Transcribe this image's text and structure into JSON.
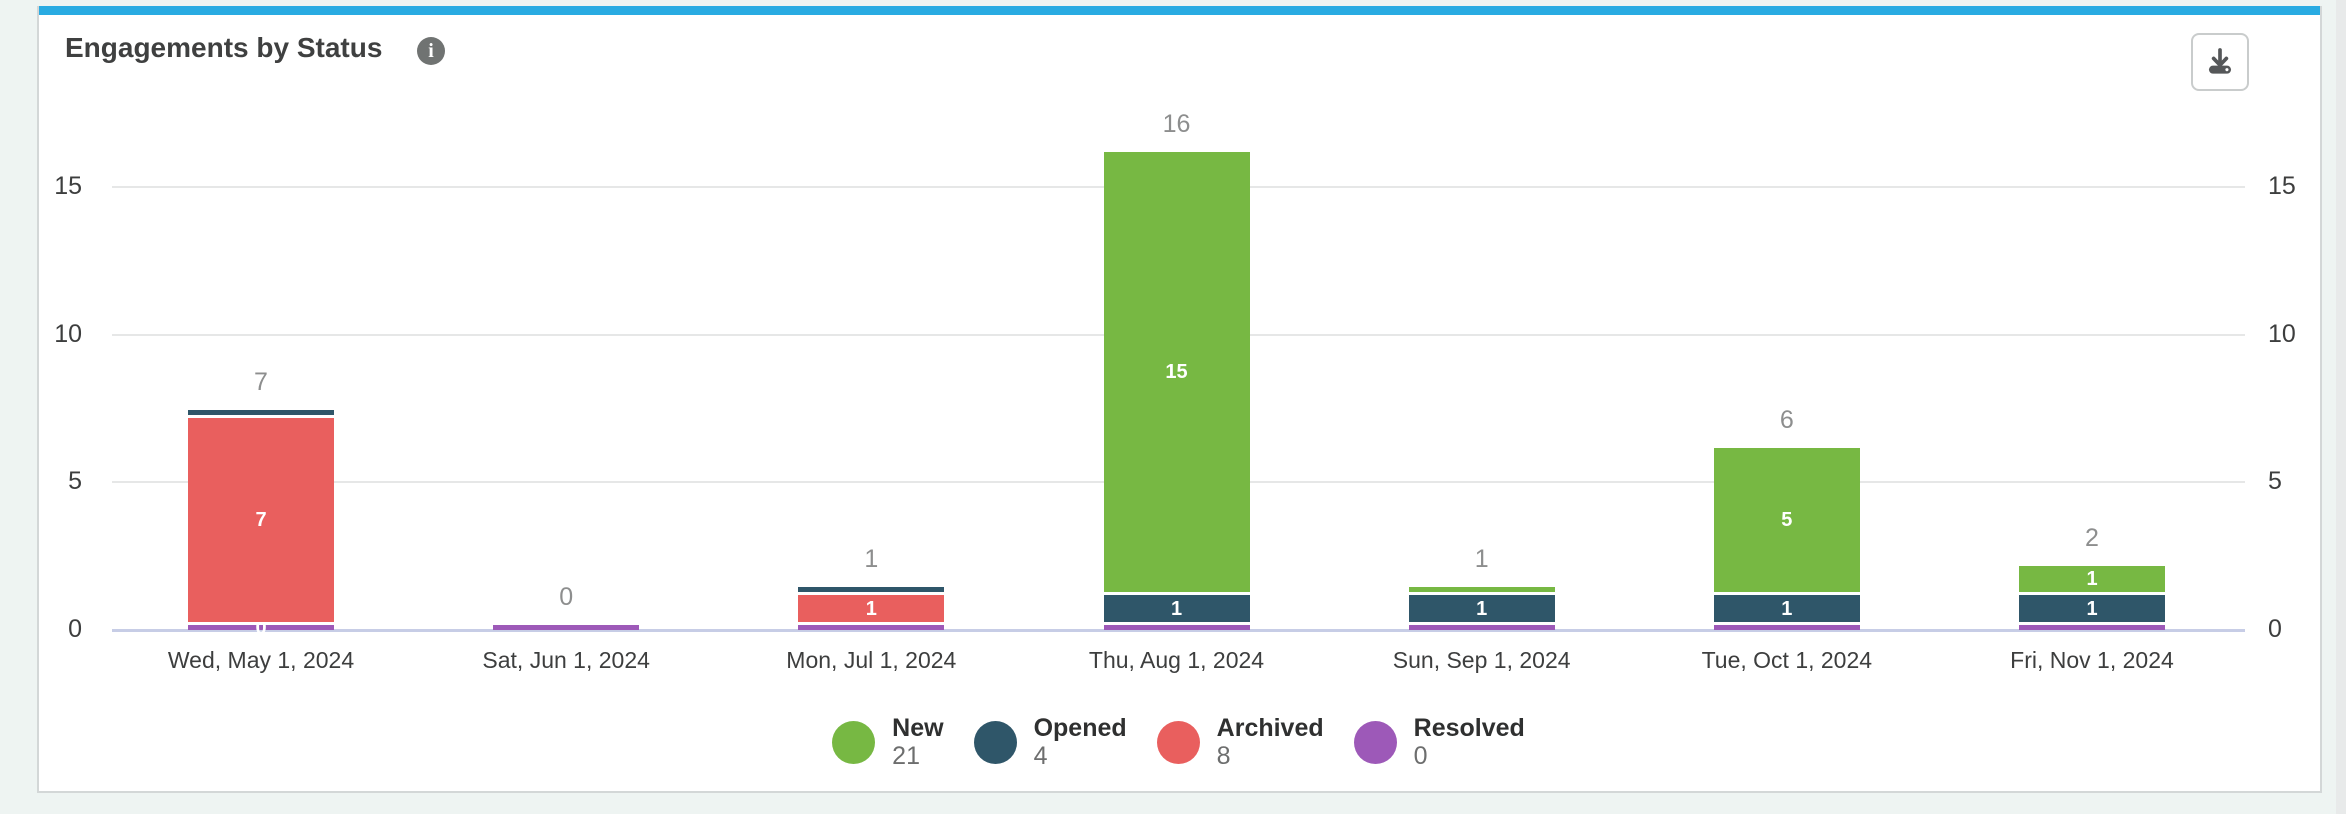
{
  "card": {
    "title": "Engagements by Status",
    "accent_color": "#29abe2",
    "info_icon_glyph": "i"
  },
  "toolbar": {
    "download_tooltip": "Download"
  },
  "axis": {
    "left_ticks": [
      "0",
      "5",
      "10",
      "15"
    ],
    "right_ticks": [
      "0",
      "5",
      "10",
      "15"
    ]
  },
  "chart_data": {
    "type": "bar",
    "stacked": true,
    "title": "Engagements by Status",
    "xlabel": "",
    "ylabel": "",
    "ylim": [
      0,
      16
    ],
    "y_ticks": [
      0,
      5,
      10,
      15
    ],
    "grid": true,
    "legend_position": "bottom",
    "categories": [
      "Wed, May 1, 2024",
      "Sat, Jun 1, 2024",
      "Mon, Jul 1, 2024",
      "Thu, Aug 1, 2024",
      "Sun, Sep 1, 2024",
      "Tue, Oct 1, 2024",
      "Fri, Nov 1, 2024"
    ],
    "series": [
      {
        "name": "New",
        "color": "#77b843",
        "values": [
          0,
          0,
          0,
          15,
          0,
          5,
          1
        ],
        "total": 21
      },
      {
        "name": "Opened",
        "color": "#2f5669",
        "values": [
          0,
          0,
          0,
          1,
          1,
          1,
          1
        ],
        "total": 4
      },
      {
        "name": "Archived",
        "color": "#e95f5e",
        "values": [
          7,
          0,
          1,
          0,
          0,
          0,
          0
        ],
        "total": 8
      },
      {
        "name": "Resolved",
        "color": "#9d59b8",
        "values": [
          0,
          0,
          0,
          0,
          0,
          0,
          0
        ],
        "total": 0
      }
    ],
    "bar_totals": [
      7,
      0,
      1,
      16,
      1,
      6,
      2
    ],
    "bars": [
      {
        "category": "Wed, May 1, 2024",
        "total_label": "7",
        "segments": [
          {
            "series": "Resolved",
            "value": 0,
            "label": "0"
          },
          {
            "series": "Archived",
            "value": 7,
            "label": "7"
          },
          {
            "series": "Opened",
            "value": 0
          }
        ]
      },
      {
        "category": "Sat, Jun 1, 2024",
        "total_label": "0",
        "segments": [
          {
            "series": "Resolved",
            "value": 0
          }
        ]
      },
      {
        "category": "Mon, Jul 1, 2024",
        "total_label": "1",
        "segments": [
          {
            "series": "Resolved",
            "value": 0
          },
          {
            "series": "Archived",
            "value": 1,
            "label": "1"
          },
          {
            "series": "Opened",
            "value": 0
          }
        ]
      },
      {
        "category": "Thu, Aug 1, 2024",
        "total_label": "16",
        "segments": [
          {
            "series": "Resolved",
            "value": 0
          },
          {
            "series": "Opened",
            "value": 1,
            "label": "1"
          },
          {
            "series": "New",
            "value": 15,
            "label": "15"
          }
        ]
      },
      {
        "category": "Sun, Sep 1, 2024",
        "total_label": "1",
        "segments": [
          {
            "series": "Resolved",
            "value": 0
          },
          {
            "series": "Opened",
            "value": 1,
            "label": "1"
          },
          {
            "series": "New",
            "value": 0
          }
        ]
      },
      {
        "category": "Tue, Oct 1, 2024",
        "total_label": "6",
        "segments": [
          {
            "series": "Resolved",
            "value": 0
          },
          {
            "series": "Opened",
            "value": 1,
            "label": "1"
          },
          {
            "series": "New",
            "value": 5,
            "label": "5"
          }
        ]
      },
      {
        "category": "Fri, Nov 1, 2024",
        "total_label": "2",
        "segments": [
          {
            "series": "Resolved",
            "value": 0
          },
          {
            "series": "Opened",
            "value": 1,
            "label": "1"
          },
          {
            "series": "New",
            "value": 1,
            "label": "1"
          }
        ]
      }
    ]
  },
  "legend": {
    "items": [
      {
        "label": "New",
        "value": "21",
        "color": "#77b843"
      },
      {
        "label": "Opened",
        "value": "4",
        "color": "#2f5669"
      },
      {
        "label": "Archived",
        "value": "8",
        "color": "#e95f5e"
      },
      {
        "label": "Resolved",
        "value": "0",
        "color": "#9d59b8"
      }
    ]
  },
  "colors": {
    "accent_top_border": "#29abe2",
    "page_background": "#eef4f2",
    "card_border": "#d3d7d7",
    "gridline": "#e6e7e7",
    "baseline": "#c7cde6",
    "axis_text": "#3d3e3e",
    "total_label_text": "#8d8e8e",
    "inside_label_text": "#ffffff"
  }
}
